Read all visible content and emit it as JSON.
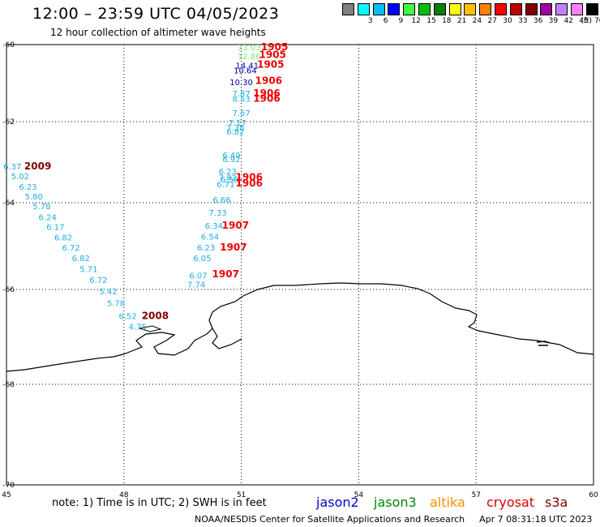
{
  "header": {
    "title": "12:00 – 23:59 UTC 04/05/2023",
    "subtitle": "12 hour collection of altimeter wave heights"
  },
  "colorbar": {
    "unit": "(ft)",
    "swatches": [
      {
        "label": "",
        "color": "#808080"
      },
      {
        "label": "3",
        "color": "#00ffff"
      },
      {
        "label": "6",
        "color": "#00bfff"
      },
      {
        "label": "9",
        "color": "#0000ff"
      },
      {
        "label": "12",
        "color": "#40ff40"
      },
      {
        "label": "15",
        "color": "#00c000"
      },
      {
        "label": "18",
        "color": "#008000"
      },
      {
        "label": "21",
        "color": "#ffff00"
      },
      {
        "label": "24",
        "color": "#ffc000"
      },
      {
        "label": "27",
        "color": "#ff8000"
      },
      {
        "label": "30",
        "color": "#ff0000"
      },
      {
        "label": "33",
        "color": "#c00000"
      },
      {
        "label": "36",
        "color": "#800000"
      },
      {
        "label": "39",
        "color": "#a000a0"
      },
      {
        "label": "42",
        "color": "#c080ff"
      },
      {
        "label": "45",
        "color": "#ff80ff"
      },
      {
        "label": "70",
        "color": "#000000"
      }
    ]
  },
  "axes": {
    "x_ticks": [
      "45",
      "48",
      "51",
      "54",
      "57",
      "60"
    ],
    "y_ticks": [
      "-60",
      "-62",
      "-64",
      "-66",
      "-68",
      "-70"
    ]
  },
  "observations": [
    {
      "lon": 51.2,
      "lat": -60.15,
      "value": "13.03",
      "color": "#7fe57f"
    },
    {
      "lon": 51.2,
      "lat": -60.38,
      "value": "12.86",
      "color": "#7fe57f"
    },
    {
      "lon": 51.15,
      "lat": -60.62,
      "value": "14.41",
      "color": "#0000aa"
    },
    {
      "lon": 51.1,
      "lat": -60.75,
      "value": "10.64",
      "color": "#0000aa"
    },
    {
      "lon": 51.0,
      "lat": -61.05,
      "value": "10.30",
      "color": "#0000aa"
    },
    {
      "lon": 51.0,
      "lat": -61.35,
      "value": "7.87",
      "color": "#1eaee0"
    },
    {
      "lon": 51.0,
      "lat": -61.48,
      "value": "8.53",
      "color": "#1eaee0"
    },
    {
      "lon": 51.0,
      "lat": -61.85,
      "value": "7.67",
      "color": "#1eaee0"
    },
    {
      "lon": 50.9,
      "lat": -62.1,
      "value": "7.17",
      "color": "#1eaee0"
    },
    {
      "lon": 50.85,
      "lat": -62.22,
      "value": "7.38",
      "color": "#1eaee0"
    },
    {
      "lon": 50.85,
      "lat": -62.32,
      "value": "6.82",
      "color": "#1eaee0"
    },
    {
      "lon": 50.75,
      "lat": -62.9,
      "value": "6.49",
      "color": "#1eaee0"
    },
    {
      "lon": 50.75,
      "lat": -63.0,
      "value": "6.92",
      "color": "#1eaee0"
    },
    {
      "lon": 50.65,
      "lat": -63.3,
      "value": "6.23",
      "color": "#1eaee0"
    },
    {
      "lon": 50.65,
      "lat": -63.45,
      "value": "7.82",
      "color": "#1eaee0"
    },
    {
      "lon": 50.7,
      "lat": -63.5,
      "value": "6.58",
      "color": "#1eaee0"
    },
    {
      "lon": 50.6,
      "lat": -63.62,
      "value": "6.71",
      "color": "#1eaee0"
    },
    {
      "lon": 50.5,
      "lat": -64.0,
      "value": "6.66",
      "color": "#1eaee0"
    },
    {
      "lon": 50.4,
      "lat": -64.3,
      "value": "7.33",
      "color": "#1eaee0"
    },
    {
      "lon": 50.3,
      "lat": -64.6,
      "value": "6.34",
      "color": "#1eaee0"
    },
    {
      "lon": 50.2,
      "lat": -64.85,
      "value": "6.54",
      "color": "#1eaee0"
    },
    {
      "lon": 50.1,
      "lat": -65.1,
      "value": "6.23",
      "color": "#1eaee0"
    },
    {
      "lon": 50.0,
      "lat": -65.35,
      "value": "6.05",
      "color": "#1eaee0"
    },
    {
      "lon": 49.9,
      "lat": -65.75,
      "value": "6.07",
      "color": "#1eaee0"
    },
    {
      "lon": 49.85,
      "lat": -65.95,
      "value": "7.74",
      "color": "#1eaee0"
    },
    {
      "lon": 45.15,
      "lat": -63.18,
      "value": "6.37",
      "color": "#1eaee0"
    },
    {
      "lon": 45.35,
      "lat": -63.42,
      "value": "5.02",
      "color": "#1eaee0"
    },
    {
      "lon": 45.55,
      "lat": -63.68,
      "value": "6.23",
      "color": "#1eaee0"
    },
    {
      "lon": 45.7,
      "lat": -63.92,
      "value": "5.80",
      "color": "#1eaee0"
    },
    {
      "lon": 45.9,
      "lat": -64.15,
      "value": "5.78",
      "color": "#1eaee0"
    },
    {
      "lon": 46.05,
      "lat": -64.4,
      "value": "6.24",
      "color": "#1eaee0"
    },
    {
      "lon": 46.25,
      "lat": -64.63,
      "value": "6.17",
      "color": "#1eaee0"
    },
    {
      "lon": 46.45,
      "lat": -64.87,
      "value": "6.82",
      "color": "#1eaee0"
    },
    {
      "lon": 46.65,
      "lat": -65.1,
      "value": "6.72",
      "color": "#1eaee0"
    },
    {
      "lon": 46.9,
      "lat": -65.35,
      "value": "6.82",
      "color": "#1eaee0"
    },
    {
      "lon": 47.1,
      "lat": -65.6,
      "value": "5.71",
      "color": "#1eaee0"
    },
    {
      "lon": 47.35,
      "lat": -65.85,
      "value": "6.72",
      "color": "#1eaee0"
    },
    {
      "lon": 47.6,
      "lat": -66.1,
      "value": "5.42",
      "color": "#1eaee0"
    },
    {
      "lon": 47.8,
      "lat": -66.35,
      "value": "5.78",
      "color": "#1eaee0"
    },
    {
      "lon": 48.1,
      "lat": -66.62,
      "value": "6.52",
      "color": "#1eaee0"
    },
    {
      "lon": 48.35,
      "lat": -66.85,
      "value": "4.75",
      "color": "#1eaee0"
    }
  ],
  "time_labels": [
    {
      "lon": 51.85,
      "lat": -60.15,
      "time": "1905",
      "color": "#ee0000"
    },
    {
      "lon": 51.8,
      "lat": -60.35,
      "time": "1905",
      "color": "#ee0000"
    },
    {
      "lon": 51.75,
      "lat": -60.6,
      "time": "1905",
      "color": "#ee0000"
    },
    {
      "lon": 51.7,
      "lat": -61.02,
      "time": "1906",
      "color": "#ee0000"
    },
    {
      "lon": 51.65,
      "lat": -61.35,
      "time": "1906",
      "color": "#ee0000"
    },
    {
      "lon": 51.65,
      "lat": -61.48,
      "time": "1906",
      "color": "#ee0000"
    },
    {
      "lon": 51.2,
      "lat": -63.45,
      "time": "1906",
      "color": "#ee0000"
    },
    {
      "lon": 51.2,
      "lat": -63.6,
      "time": "1906",
      "color": "#ee0000"
    },
    {
      "lon": 50.85,
      "lat": -64.6,
      "time": "1907",
      "color": "#ee0000"
    },
    {
      "lon": 50.8,
      "lat": -65.1,
      "time": "1907",
      "color": "#ee0000"
    },
    {
      "lon": 50.6,
      "lat": -65.72,
      "time": "1907",
      "color": "#ee0000"
    },
    {
      "lon": 45.8,
      "lat": -63.18,
      "time": "2009",
      "color": "#800000"
    },
    {
      "lon": 48.8,
      "lat": -66.62,
      "time": "2008",
      "color": "#800000"
    }
  ],
  "footer": {
    "note": "note:  1) Time is in UTC; 2) SWH is in feet",
    "satellites": [
      {
        "name": "jason2",
        "color": "#0000cc"
      },
      {
        "name": "jason3",
        "color": "#008800"
      },
      {
        "name": "altika",
        "color": "#ff8c00"
      },
      {
        "name": "cryosat",
        "color": "#dd0000"
      },
      {
        "name": "s3a",
        "color": "#800000"
      }
    ],
    "credit": "NOAA/NESDIS Center for Satellite Applications and Research",
    "timestamp": "Apr  7 08:31:18 UTC 2023"
  }
}
